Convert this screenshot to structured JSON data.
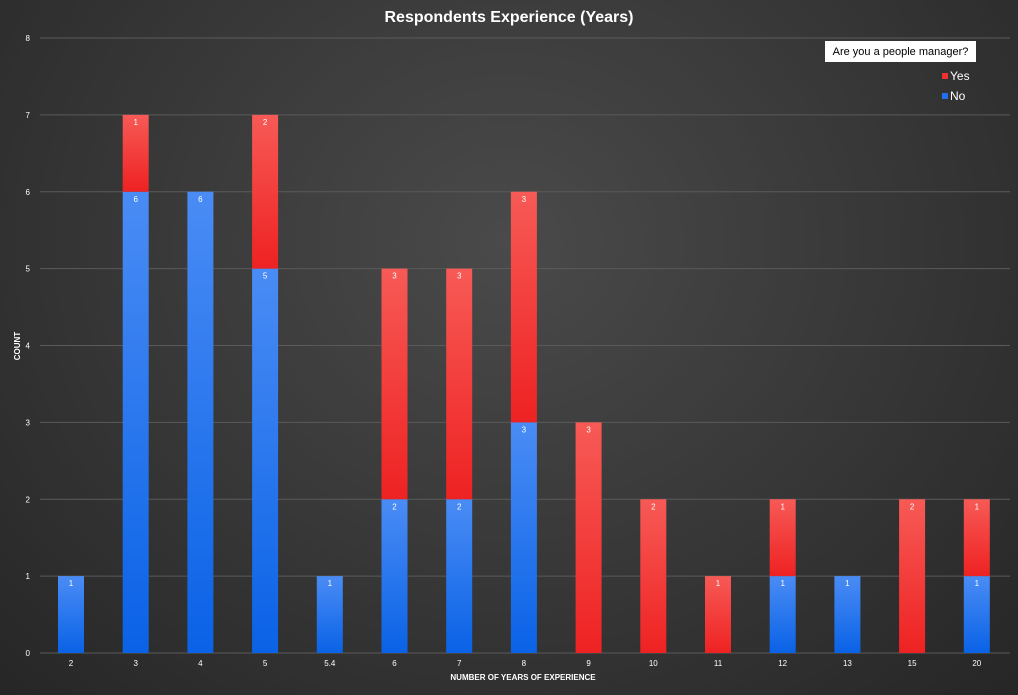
{
  "chart_data": {
    "type": "bar",
    "stacked": true,
    "title": "Respondents Experience (Years)",
    "xlabel": "NUMBER OF YEARS OF EXPERIENCE",
    "ylabel": "COUNT",
    "ylim": [
      0,
      8
    ],
    "yticks": [
      "0",
      "1",
      "2",
      "3",
      "4",
      "5",
      "6",
      "7",
      "8"
    ],
    "grid": true,
    "legend": {
      "title": "Are you a people manager?",
      "placement": "top-right"
    },
    "categories": [
      "2",
      "3",
      "4",
      "5",
      "5.4",
      "6",
      "7",
      "8",
      "9",
      "10",
      "11",
      "12",
      "13",
      "15",
      "20"
    ],
    "series": [
      {
        "name": "No",
        "color": "#1f6fef",
        "values": [
          1,
          6,
          6,
          5,
          1,
          2,
          2,
          3,
          0,
          0,
          0,
          1,
          1,
          0,
          1
        ]
      },
      {
        "name": "Yes",
        "color": "#f0312f",
        "values": [
          0,
          1,
          0,
          2,
          0,
          3,
          3,
          3,
          3,
          2,
          1,
          1,
          0,
          2,
          1
        ]
      }
    ]
  }
}
